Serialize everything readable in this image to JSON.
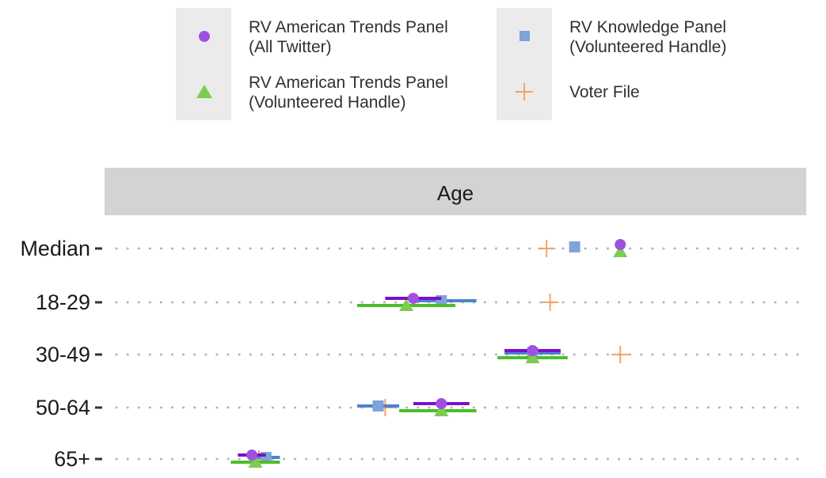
{
  "chart_data": {
    "type": "scatter",
    "facet_title": "Age",
    "categories": [
      "Median",
      "18-29",
      "30-49",
      "50-64",
      "65+"
    ],
    "grid": "dotted horizontal",
    "legend_position": "top",
    "series": [
      {
        "name_lines": [
          "RV American Trends Panel",
          "(All Twitter)"
        ],
        "marker": "circle",
        "color": "#a050e0",
        "bar_color": "#7a10c8",
        "points": [
          {
            "category": "Median",
            "value": 0.735,
            "lo": null,
            "hi": null
          },
          {
            "category": "18-29",
            "value": 0.44,
            "lo": 0.4,
            "hi": 0.48
          },
          {
            "category": "30-49",
            "value": 0.61,
            "lo": 0.57,
            "hi": 0.65
          },
          {
            "category": "50-64",
            "value": 0.48,
            "lo": 0.44,
            "hi": 0.52
          },
          {
            "category": "65+",
            "value": 0.21,
            "lo": 0.19,
            "hi": 0.23
          }
        ]
      },
      {
        "name_lines": [
          "RV American Trends Panel",
          "(Volunteered Handle)"
        ],
        "marker": "triangle",
        "color": "#7dcc52",
        "bar_color": "#4cbd2a",
        "points": [
          {
            "category": "Median",
            "value": 0.735,
            "lo": null,
            "hi": null
          },
          {
            "category": "18-29",
            "value": 0.43,
            "lo": 0.36,
            "hi": 0.5
          },
          {
            "category": "30-49",
            "value": 0.61,
            "lo": 0.56,
            "hi": 0.66
          },
          {
            "category": "50-64",
            "value": 0.48,
            "lo": 0.42,
            "hi": 0.53
          },
          {
            "category": "65+",
            "value": 0.215,
            "lo": 0.18,
            "hi": 0.25
          }
        ]
      },
      {
        "name_lines": [
          "RV Knowledge Panel",
          "(Volunteered Handle)"
        ],
        "marker": "square",
        "color": "#7ea4d8",
        "bar_color": "#4a84cc",
        "points": [
          {
            "category": "Median",
            "value": 0.67,
            "lo": null,
            "hi": null
          },
          {
            "category": "18-29",
            "value": 0.48,
            "lo": 0.44,
            "hi": 0.53
          },
          {
            "category": "30-49",
            "value": 0.61,
            "lo": 0.57,
            "hi": 0.65
          },
          {
            "category": "50-64",
            "value": 0.39,
            "lo": 0.36,
            "hi": 0.42
          },
          {
            "category": "65+",
            "value": 0.23,
            "lo": 0.21,
            "hi": 0.25
          }
        ]
      },
      {
        "name_lines": [
          "Voter File",
          ""
        ],
        "marker": "plus",
        "color": "#f2a46a",
        "bar_color": "#f2a46a",
        "points": [
          {
            "category": "Median",
            "value": 0.63,
            "lo": null,
            "hi": null
          },
          {
            "category": "18-29",
            "value": 0.635,
            "lo": null,
            "hi": null
          },
          {
            "category": "30-49",
            "value": 0.735,
            "lo": null,
            "hi": null
          },
          {
            "category": "50-64",
            "value": 0.4,
            "lo": null,
            "hi": null
          },
          {
            "category": "65+",
            "value": 0.22,
            "lo": null,
            "hi": null
          }
        ]
      }
    ]
  }
}
